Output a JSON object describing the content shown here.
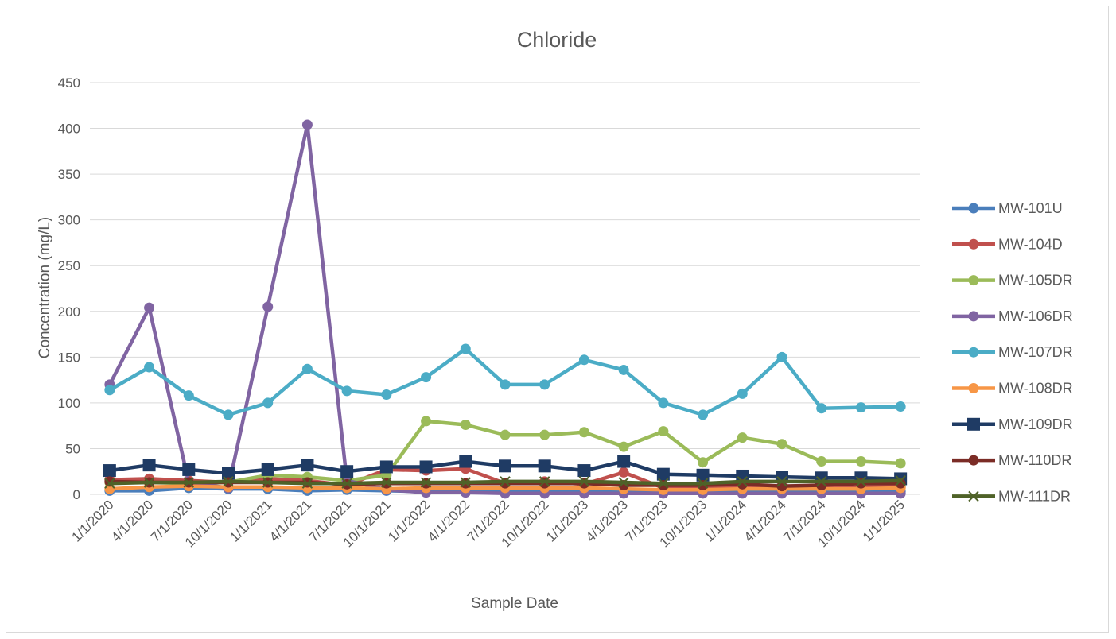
{
  "chart_data": {
    "type": "line",
    "title": "Chloride",
    "xlabel": "Sample Date",
    "ylabel": "Concentration (mg/L)",
    "ylim": [
      0,
      450
    ],
    "yticks": [
      0,
      50,
      100,
      150,
      200,
      250,
      300,
      350,
      400,
      450
    ],
    "grid": true,
    "legend_position": "right",
    "categories": [
      "1/1/2020",
      "4/1/2020",
      "7/1/2020",
      "10/1/2020",
      "1/1/2021",
      "4/1/2021",
      "7/1/2021",
      "10/1/2021",
      "1/1/2022",
      "4/1/2022",
      "7/1/2022",
      "10/1/2022",
      "1/1/2023",
      "4/1/2023",
      "7/1/2023",
      "10/1/2023",
      "1/1/2024",
      "4/1/2024",
      "7/1/2024",
      "10/1/2024",
      "1/1/2025"
    ],
    "series": [
      {
        "name": "MW-101U",
        "color": "#4a7ebb",
        "marker": "circle",
        "values": [
          4,
          4,
          7,
          6,
          6,
          4,
          5,
          4,
          3,
          3,
          3,
          3,
          3,
          3,
          3,
          3,
          3,
          3,
          3,
          3,
          3
        ]
      },
      {
        "name": "MW-104D",
        "color": "#c0504d",
        "marker": "circle",
        "values": [
          16,
          17,
          15,
          13,
          17,
          15,
          10,
          27,
          26,
          28,
          12,
          14,
          11,
          24,
          7,
          7,
          8,
          7,
          7,
          8,
          8
        ]
      },
      {
        "name": "MW-105DR",
        "color": "#9bbb59",
        "marker": "circle",
        "values": [
          13,
          13,
          12,
          13,
          21,
          19,
          15,
          21,
          80,
          76,
          65,
          65,
          68,
          52,
          69,
          35,
          62,
          55,
          36,
          36,
          34
        ]
      },
      {
        "name": "MW-106DR",
        "color": "#8064a2",
        "marker": "circle",
        "values": [
          120,
          204,
          13,
          7,
          205,
          404,
          15,
          5,
          2,
          2,
          1,
          1,
          1,
          1,
          1,
          1,
          1,
          1,
          1,
          1,
          1
        ]
      },
      {
        "name": "MW-107DR",
        "color": "#4bacc6",
        "marker": "circle",
        "values": [
          114,
          139,
          108,
          87,
          100,
          137,
          113,
          109,
          128,
          159,
          120,
          120,
          147,
          136,
          100,
          87,
          110,
          150,
          94,
          95,
          96
        ]
      },
      {
        "name": "MW-108DR",
        "color": "#f79646",
        "marker": "circle",
        "values": [
          6,
          8,
          9,
          8,
          8,
          7,
          7,
          6,
          7,
          7,
          7,
          7,
          7,
          6,
          5,
          5,
          6,
          6,
          6,
          6,
          7
        ]
      },
      {
        "name": "MW-109DR",
        "color": "#1f3b64",
        "marker": "square",
        "values": [
          26,
          32,
          27,
          23,
          27,
          32,
          25,
          30,
          30,
          36,
          31,
          31,
          26,
          36,
          22,
          21,
          20,
          19,
          18,
          18,
          17
        ]
      },
      {
        "name": "MW-110DR",
        "color": "#7b2c26",
        "marker": "circle",
        "values": [
          14,
          13,
          13,
          13,
          13,
          13,
          11,
          12,
          12,
          12,
          12,
          12,
          12,
          10,
          10,
          10,
          11,
          9,
          10,
          12,
          12
        ]
      },
      {
        "name": "MW-111DR",
        "color": "#4f6228",
        "marker": "x",
        "values": [
          12,
          13,
          13,
          14,
          13,
          12,
          12,
          13,
          13,
          13,
          14,
          14,
          14,
          13,
          12,
          12,
          14,
          14,
          14,
          14,
          15
        ]
      }
    ]
  }
}
